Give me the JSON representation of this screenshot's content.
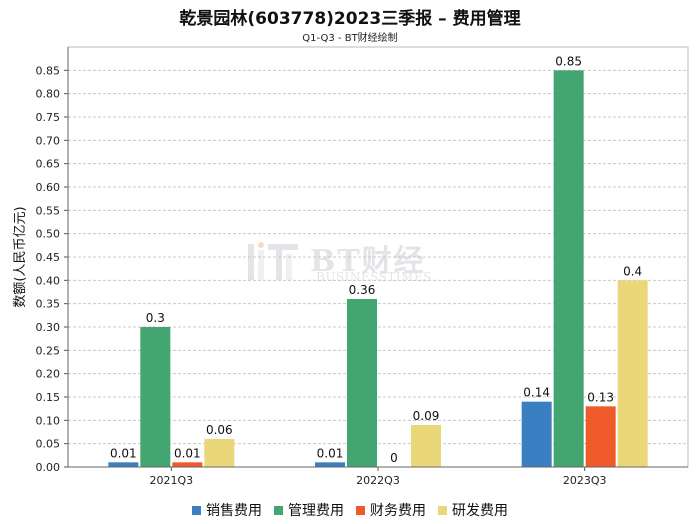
{
  "chart_data": {
    "type": "bar",
    "title": "乾景园林(603778)2023三季报 – 费用管理",
    "subtitle": "Q1-Q3 - BT财经绘制",
    "xlabel": "",
    "ylabel": "数额(人民币亿元)",
    "ylim": [
      0,
      0.9
    ],
    "yticks": [
      "0.00",
      "0.05",
      "0.10",
      "0.15",
      "0.20",
      "0.25",
      "0.30",
      "0.35",
      "0.40",
      "0.45",
      "0.50",
      "0.55",
      "0.60",
      "0.65",
      "0.70",
      "0.75",
      "0.80",
      "0.85"
    ],
    "grid": true,
    "legend_position": "bottom",
    "categories": [
      "2021Q3",
      "2022Q3",
      "2023Q3"
    ],
    "series": [
      {
        "name": "销售费用",
        "color": "#3a7fc1",
        "values": [
          0.01,
          0.01,
          0.14
        ],
        "labels": [
          "0.01",
          "0.01",
          "0.14"
        ]
      },
      {
        "name": "管理费用",
        "color": "#43a570",
        "values": [
          0.3,
          0.36,
          0.85
        ],
        "labels": [
          "0.3",
          "0.36",
          "0.85"
        ]
      },
      {
        "name": "财务费用",
        "color": "#ee5a2a",
        "values": [
          0.01,
          0.0,
          0.13
        ],
        "labels": [
          "0.01",
          "0",
          "0.13"
        ]
      },
      {
        "name": "研发费用",
        "color": "#ead77a",
        "values": [
          0.06,
          0.09,
          0.4
        ],
        "labels": [
          "0.06",
          "0.09",
          "0.4"
        ]
      }
    ]
  },
  "watermark": {
    "main": "BT财经",
    "sub": "BUSINESSTIMES"
  }
}
